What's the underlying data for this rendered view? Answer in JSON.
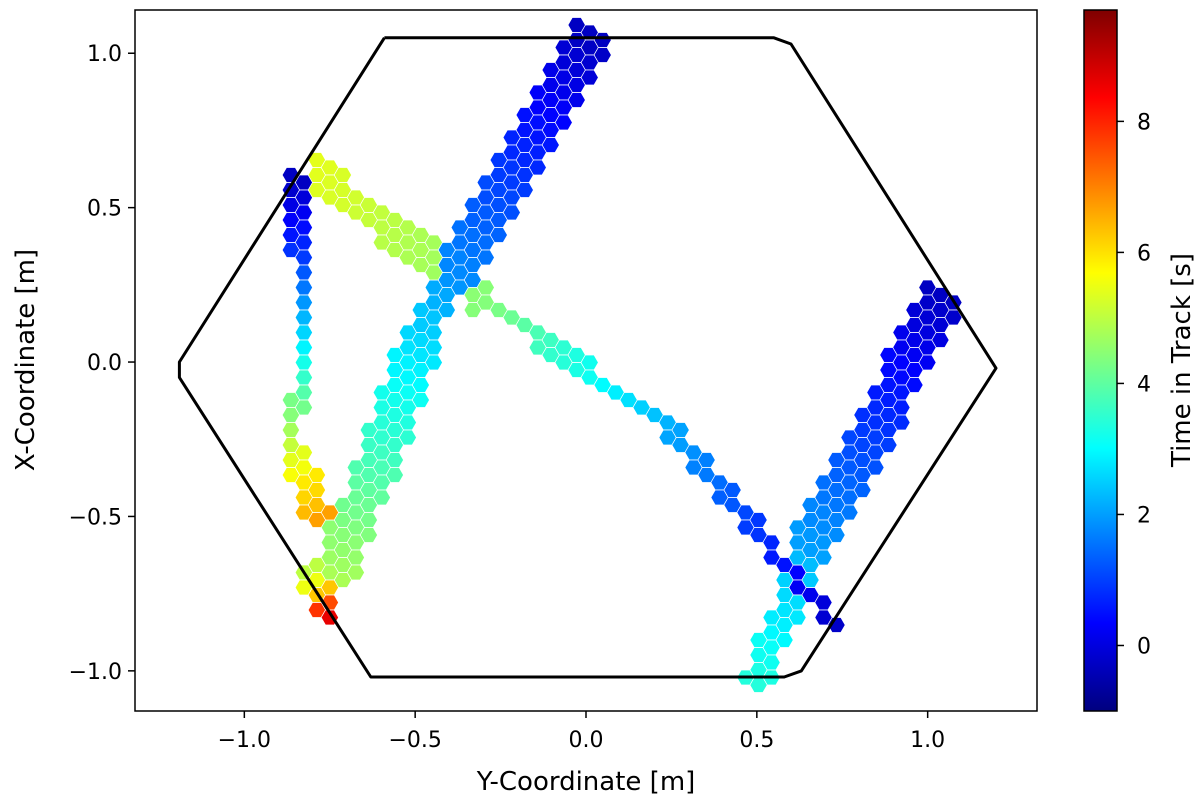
{
  "chart_data": {
    "type": "scatter",
    "marker": "hexagon",
    "xlabel": "Y-Coordinate [m]",
    "ylabel": "X-Coordinate [m]",
    "xlim": [
      -1.32,
      1.32
    ],
    "ylim": [
      -1.13,
      1.14
    ],
    "xticks": [
      -1.0,
      -0.5,
      0.0,
      0.5,
      1.0
    ],
    "xtick_labels": [
      "−1.0",
      "−0.5",
      "0.0",
      "0.5",
      "1.0"
    ],
    "yticks": [
      -1.0,
      -0.5,
      0.0,
      0.5,
      1.0
    ],
    "ytick_labels": [
      "−1.0",
      "−0.5",
      "0.0",
      "0.5",
      "1.0"
    ],
    "grid": false,
    "colormap": "jet",
    "colorbar": {
      "label": "Time in Track [s]",
      "range": [
        -1.0,
        9.7
      ],
      "ticks": [
        0,
        2,
        4,
        6,
        8
      ],
      "tick_labels": [
        "0",
        "2",
        "4",
        "6",
        "8"
      ]
    },
    "boundary": {
      "color": "#000000",
      "vertices": [
        [
          -0.59,
          1.05
        ],
        [
          0.55,
          1.05
        ],
        [
          0.6,
          1.03
        ],
        [
          1.2,
          -0.02
        ],
        [
          0.63,
          -1.0
        ],
        [
          0.58,
          -1.02
        ],
        [
          -0.63,
          -1.02
        ],
        [
          -1.19,
          -0.05
        ],
        [
          -1.19,
          0.0
        ],
        [
          -0.59,
          1.05
        ]
      ]
    },
    "tracks": [
      {
        "from": [
          0.02,
          1.05
        ],
        "to": [
          -0.37,
          0.3
        ],
        "t_from": -0.3,
        "t_to": 1.8,
        "width": 3
      },
      {
        "from": [
          -0.37,
          0.3
        ],
        "to": [
          -0.47,
          0.1
        ],
        "t_from": 1.8,
        "t_to": 2.6,
        "width": 2
      },
      {
        "from": [
          -0.47,
          0.1
        ],
        "to": [
          -0.73,
          -0.68
        ],
        "t_from": 2.6,
        "t_to": 4.8,
        "width": 3
      },
      {
        "from": [
          -0.84,
          0.6
        ],
        "to": [
          -0.83,
          0.35
        ],
        "t_from": -0.3,
        "t_to": 1.0,
        "width": 2
      },
      {
        "from": [
          -0.83,
          0.35
        ],
        "to": [
          -0.85,
          -0.3
        ],
        "t_from": 1.0,
        "t_to": 5.4,
        "width": 1
      },
      {
        "from": [
          -0.85,
          -0.3
        ],
        "to": [
          -0.78,
          -0.52
        ],
        "t_from": 5.4,
        "t_to": 6.8,
        "width": 2
      },
      {
        "from": [
          -0.8,
          -0.68
        ],
        "to": [
          -0.75,
          -0.8
        ],
        "t_from": 5.0,
        "t_to": 8.6,
        "width": 2
      },
      {
        "from": [
          -0.8,
          0.62
        ],
        "to": [
          -0.3,
          0.2
        ],
        "t_from": 5.4,
        "t_to": 4.4,
        "width": 2
      },
      {
        "from": [
          -0.3,
          0.2
        ],
        "to": [
          0.25,
          -0.22
        ],
        "t_from": 4.4,
        "t_to": 2.1,
        "width": 1
      },
      {
        "from": [
          0.25,
          -0.22
        ],
        "to": [
          0.73,
          -0.85
        ],
        "t_from": 2.1,
        "t_to": -0.3,
        "width": 1
      },
      {
        "from": [
          1.05,
          0.22
        ],
        "to": [
          0.65,
          -0.62
        ],
        "t_from": -0.3,
        "t_to": 2.1,
        "width": 3
      },
      {
        "from": [
          0.65,
          -0.62
        ],
        "to": [
          0.5,
          -1.03
        ],
        "t_from": 2.3,
        "t_to": 3.4,
        "width": 2
      }
    ]
  }
}
